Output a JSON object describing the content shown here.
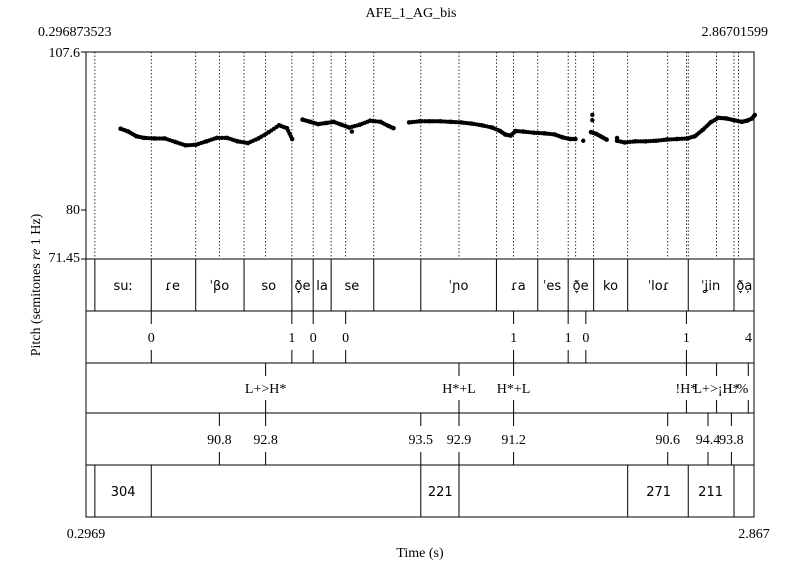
{
  "chart_data": {
    "type": "scatter",
    "title": "AFE_1_AG_bis",
    "xlabel": "Time (s)",
    "ylabel": "Pitch (semitones re 1 Hz)",
    "ylabel_parts": [
      "Pitch (semitones ",
      "re",
      " 1 Hz)"
    ],
    "xlim": [
      0.2969,
      2.867
    ],
    "ylim": [
      71.45,
      107.6
    ],
    "selection_start": "0.296873523",
    "selection_end": "2.86701599",
    "x_ticks": [
      "0.2969",
      "2.867"
    ],
    "y_ticks": [
      "107.6",
      "80",
      "71.45"
    ],
    "grid": false,
    "pitch_segments": [
      {
        "points": [
          [
            0.43,
            94.2
          ],
          [
            0.46,
            93.7
          ],
          [
            0.49,
            92.9
          ],
          [
            0.52,
            92.6
          ],
          [
            0.56,
            92.5
          ],
          [
            0.6,
            92.5
          ],
          [
            0.64,
            91.9
          ],
          [
            0.68,
            91.3
          ],
          [
            0.72,
            91.4
          ],
          [
            0.76,
            92.0
          ],
          [
            0.8,
            92.6
          ],
          [
            0.84,
            92.6
          ],
          [
            0.88,
            92.0
          ],
          [
            0.92,
            91.7
          ],
          [
            0.96,
            92.5
          ],
          [
            1.0,
            93.6
          ],
          [
            1.04,
            94.8
          ],
          [
            1.07,
            94.3
          ],
          [
            1.09,
            92.4
          ]
        ]
      },
      {
        "points": [
          [
            1.13,
            95.8
          ],
          [
            1.16,
            95.4
          ],
          [
            1.19,
            95.0
          ],
          [
            1.22,
            95.2
          ],
          [
            1.25,
            95.4
          ],
          [
            1.28,
            94.9
          ],
          [
            1.31,
            94.4
          ],
          [
            1.35,
            94.9
          ],
          [
            1.39,
            95.6
          ],
          [
            1.43,
            95.4
          ],
          [
            1.46,
            94.7
          ],
          [
            1.48,
            94.3
          ]
        ]
      },
      {
        "points": [
          [
            1.54,
            95.3
          ],
          [
            1.58,
            95.5
          ],
          [
            1.62,
            95.5
          ],
          [
            1.66,
            95.5
          ],
          [
            1.7,
            95.4
          ],
          [
            1.74,
            95.3
          ],
          [
            1.78,
            95.1
          ],
          [
            1.82,
            94.8
          ],
          [
            1.86,
            94.4
          ],
          [
            1.89,
            93.8
          ],
          [
            1.91,
            93.2
          ],
          [
            1.93,
            93.0
          ],
          [
            1.95,
            93.8
          ],
          [
            1.98,
            93.7
          ],
          [
            2.02,
            93.5
          ],
          [
            2.06,
            93.4
          ],
          [
            2.1,
            93.2
          ],
          [
            2.13,
            92.7
          ],
          [
            2.16,
            92.4
          ],
          [
            2.18,
            92.4
          ]
        ]
      },
      {
        "points": [
          [
            2.24,
            93.6
          ],
          [
            2.26,
            93.3
          ],
          [
            2.28,
            92.8
          ],
          [
            2.3,
            92.3
          ]
        ]
      },
      {
        "points": [
          [
            2.34,
            92.1
          ],
          [
            2.37,
            91.8
          ],
          [
            2.41,
            92.0
          ],
          [
            2.45,
            92.0
          ],
          [
            2.49,
            92.1
          ],
          [
            2.53,
            92.3
          ],
          [
            2.57,
            92.4
          ],
          [
            2.61,
            92.5
          ],
          [
            2.64,
            92.9
          ],
          [
            2.67,
            94.0
          ],
          [
            2.7,
            95.3
          ],
          [
            2.73,
            96.1
          ],
          [
            2.76,
            96.0
          ],
          [
            2.79,
            95.7
          ],
          [
            2.82,
            95.4
          ],
          [
            2.84,
            95.6
          ],
          [
            2.86,
            96.0
          ],
          [
            2.87,
            96.6
          ]
        ]
      }
    ],
    "stray_points": [
      [
        2.245,
        96.6
      ],
      [
        2.245,
        95.7
      ],
      [
        2.21,
        92.1
      ],
      [
        2.34,
        92.6
      ],
      [
        1.32,
        93.7
      ]
    ],
    "boundaries": [
      0.331,
      0.548,
      0.719,
      0.81,
      0.905,
      0.988,
      1.089,
      1.171,
      1.24,
      1.296,
      1.404,
      1.585,
      1.732,
      1.876,
      1.942,
      2.035,
      2.152,
      2.181,
      2.25,
      2.381,
      2.535,
      2.607,
      2.614,
      2.723,
      2.79,
      2.807
    ],
    "tiers": [
      {
        "name": "words",
        "boundaries": [
          0.331,
          0.548,
          0.719,
          0.905,
          1.089,
          1.171,
          1.24,
          1.404,
          1.585,
          1.876,
          2.035,
          2.152,
          2.25,
          2.381,
          2.614,
          2.79
        ],
        "labels": [
          {
            "t": 0.44,
            "text": "suː"
          },
          {
            "t": 0.63,
            "text": "ɾe"
          },
          {
            "t": 0.81,
            "text": "ˈβo"
          },
          {
            "t": 1.0,
            "text": "so"
          },
          {
            "t": 1.13,
            "text": "ð̞e"
          },
          {
            "t": 1.205,
            "text": "la"
          },
          {
            "t": 1.32,
            "text": "se"
          },
          {
            "t": 1.73,
            "text": "ˈɲo"
          },
          {
            "t": 1.96,
            "text": "ɾa"
          },
          {
            "t": 2.09,
            "text": "ˈes"
          },
          {
            "t": 2.2,
            "text": "ð̞e"
          },
          {
            "t": 2.315,
            "text": "ko"
          },
          {
            "t": 2.5,
            "text": "ˈloɾ"
          },
          {
            "t": 2.7,
            "text": "ˈʝin"
          },
          {
            "t": 2.83,
            "text": "ð̞a̦"
          }
        ]
      },
      {
        "name": "break indices",
        "points": [
          {
            "t": 0.548,
            "text": "0"
          },
          {
            "t": 1.089,
            "text": "1"
          },
          {
            "t": 1.171,
            "text": "0"
          },
          {
            "t": 1.296,
            "text": "0"
          },
          {
            "t": 1.942,
            "text": "1"
          },
          {
            "t": 2.152,
            "text": "1"
          },
          {
            "t": 2.22,
            "text": "0"
          },
          {
            "t": 2.607,
            "text": "1"
          },
          {
            "t": 2.867,
            "text": "4"
          }
        ]
      },
      {
        "name": "tones",
        "points": [
          {
            "t": 0.988,
            "text": "L+>H*"
          },
          {
            "t": 1.732,
            "text": "H*+L"
          },
          {
            "t": 1.942,
            "text": "H*+L"
          },
          {
            "t": 2.607,
            "text": "!H*"
          },
          {
            "t": 2.723,
            "text": "L+>¡H*"
          },
          {
            "t": 2.845,
            "text": "L%"
          }
        ]
      },
      {
        "name": "f0 values",
        "points": [
          {
            "t": 0.81,
            "text": "90.8"
          },
          {
            "t": 0.988,
            "text": "92.8"
          },
          {
            "t": 1.585,
            "text": "93.5"
          },
          {
            "t": 1.732,
            "text": "92.9"
          },
          {
            "t": 1.942,
            "text": "91.2"
          },
          {
            "t": 2.535,
            "text": "90.6"
          },
          {
            "t": 2.69,
            "text": "94.4"
          },
          {
            "t": 2.78,
            "text": "93.8"
          }
        ]
      },
      {
        "name": "durations",
        "boundaries": [
          0.331,
          0.548,
          1.585,
          1.732,
          2.381,
          2.614,
          2.79
        ],
        "labels": [
          {
            "t": 0.44,
            "text": "304"
          },
          {
            "t": 1.66,
            "text": "221"
          },
          {
            "t": 2.5,
            "text": "271"
          },
          {
            "t": 2.7,
            "text": "211"
          }
        ]
      }
    ]
  }
}
